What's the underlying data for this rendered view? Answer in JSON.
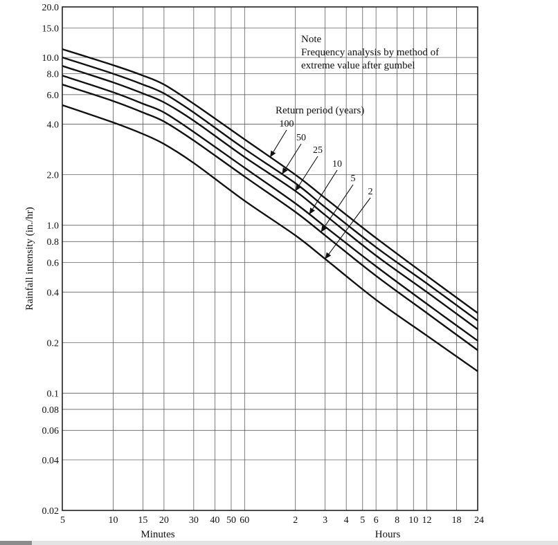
{
  "chart_data": {
    "type": "line",
    "xscale": "log",
    "yscale": "log",
    "xlim_minutes": [
      5,
      1440
    ],
    "ylim": [
      0.02,
      20.0
    ],
    "ylabel": "Rainfall intensity (in./hr)",
    "xlabel_minutes": "Minutes",
    "xlabel_hours": "Hours",
    "x_ticks_minutes": [
      {
        "label": "5",
        "minutes": 5
      },
      {
        "label": "10",
        "minutes": 10
      },
      {
        "label": "15",
        "minutes": 15
      },
      {
        "label": "20",
        "minutes": 20
      },
      {
        "label": "30",
        "minutes": 30
      },
      {
        "label": "40",
        "minutes": 40
      },
      {
        "label": "50",
        "minutes": 50
      },
      {
        "label": "60",
        "minutes": 60
      }
    ],
    "x_ticks_hours": [
      {
        "label": "2",
        "minutes": 120
      },
      {
        "label": "3",
        "minutes": 180
      },
      {
        "label": "4",
        "minutes": 240
      },
      {
        "label": "5",
        "minutes": 300
      },
      {
        "label": "6",
        "minutes": 360
      },
      {
        "label": "8",
        "minutes": 480
      },
      {
        "label": "10",
        "minutes": 600
      },
      {
        "label": "12",
        "minutes": 720
      },
      {
        "label": "18",
        "minutes": 1080
      },
      {
        "label": "24",
        "minutes": 1440
      }
    ],
    "y_ticks": [
      {
        "label": "20.0",
        "value": 20
      },
      {
        "label": "15.0",
        "value": 15
      },
      {
        "label": "10.0",
        "value": 10
      },
      {
        "label": "8.0",
        "value": 8
      },
      {
        "label": "6.0",
        "value": 6
      },
      {
        "label": "4.0",
        "value": 4
      },
      {
        "label": "2.0",
        "value": 2
      },
      {
        "label": "1.0",
        "value": 1
      },
      {
        "label": "0.8",
        "value": 0.8
      },
      {
        "label": "0.6",
        "value": 0.6
      },
      {
        "label": "0.4",
        "value": 0.4
      },
      {
        "label": "0.2",
        "value": 0.2
      },
      {
        "label": "0.1",
        "value": 0.1
      },
      {
        "label": "0.08",
        "value": 0.08
      },
      {
        "label": "0.06",
        "value": 0.06
      },
      {
        "label": "0.04",
        "value": 0.04
      },
      {
        "label": "0.02",
        "value": 0.02
      }
    ],
    "note": {
      "lines": [
        "Note",
        "Frequency analysis by method of",
        "extreme value after gumbel"
      ]
    },
    "legend_title": "Return period (years)",
    "series": [
      {
        "name": "100",
        "x_minutes": [
          5,
          10,
          15,
          20,
          30,
          60,
          120,
          180,
          360,
          720,
          1440
        ],
        "values": [
          11.2,
          9.0,
          7.8,
          6.9,
          5.3,
          3.25,
          2.0,
          1.45,
          0.84,
          0.5,
          0.3
        ],
        "label_anchor_minutes": 85,
        "label_pos": [
          414,
          183
        ]
      },
      {
        "name": "50",
        "x_minutes": [
          5,
          10,
          15,
          20,
          30,
          60,
          120,
          180,
          360,
          720,
          1440
        ],
        "values": [
          10.0,
          8.0,
          6.9,
          6.1,
          4.7,
          2.85,
          1.78,
          1.28,
          0.74,
          0.45,
          0.27
        ],
        "label_anchor_minutes": 100,
        "label_pos": [
          435,
          203
        ]
      },
      {
        "name": "25",
        "x_minutes": [
          5,
          10,
          15,
          20,
          30,
          60,
          120,
          180,
          360,
          720,
          1440
        ],
        "values": [
          8.9,
          7.1,
          6.1,
          5.4,
          4.2,
          2.55,
          1.6,
          1.15,
          0.66,
          0.4,
          0.24
        ],
        "label_anchor_minutes": 120,
        "label_pos": [
          459,
          221
        ]
      },
      {
        "name": "10",
        "x_minutes": [
          5,
          10,
          15,
          20,
          30,
          60,
          120,
          180,
          360,
          720,
          1440
        ],
        "values": [
          7.8,
          6.2,
          5.3,
          4.7,
          3.6,
          2.2,
          1.35,
          0.98,
          0.57,
          0.34,
          0.205
        ],
        "label_anchor_minutes": 145,
        "label_pos": [
          487,
          241
        ]
      },
      {
        "name": "5",
        "x_minutes": [
          5,
          10,
          15,
          20,
          30,
          60,
          120,
          180,
          360,
          720,
          1440
        ],
        "values": [
          6.9,
          5.5,
          4.7,
          4.15,
          3.2,
          1.95,
          1.2,
          0.87,
          0.5,
          0.3,
          0.18
        ],
        "label_anchor_minutes": 170,
        "label_pos": [
          510,
          262
        ]
      },
      {
        "name": "2",
        "x_minutes": [
          5,
          10,
          15,
          20,
          30,
          60,
          120,
          180,
          360,
          720,
          1440
        ],
        "values": [
          5.2,
          4.1,
          3.5,
          3.05,
          2.35,
          1.4,
          0.87,
          0.63,
          0.36,
          0.22,
          0.135
        ],
        "label_anchor_minutes": 180,
        "label_pos": [
          535,
          281
        ]
      }
    ]
  }
}
